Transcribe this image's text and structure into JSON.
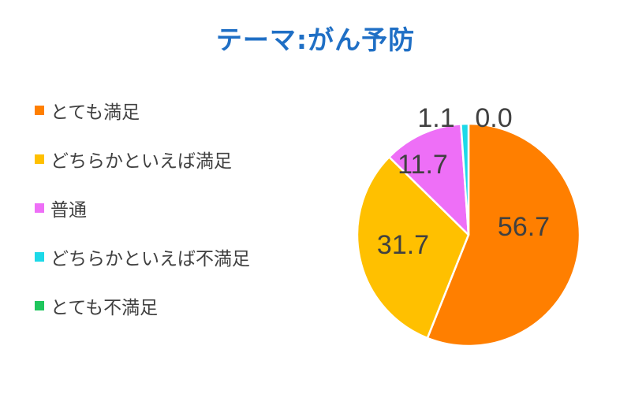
{
  "chart_data": {
    "type": "pie",
    "title": "テーマ:がん予防",
    "categories": [
      "とても満足",
      "どちらかといえば満足",
      "普通",
      "どちらかといえば不満足",
      "とても不満足"
    ],
    "values": [
      56.7,
      31.7,
      11.7,
      1.1,
      0.0
    ],
    "value_labels": [
      "56.7",
      "31.7",
      "11.7",
      "1.1",
      "0.0"
    ],
    "colors": [
      "#ff7f00",
      "#ffc000",
      "#ee6ff7",
      "#1dd9e8",
      "#1fc65c"
    ],
    "start_angle_deg": 0,
    "direction": "clockwise",
    "legend_position": "left"
  }
}
